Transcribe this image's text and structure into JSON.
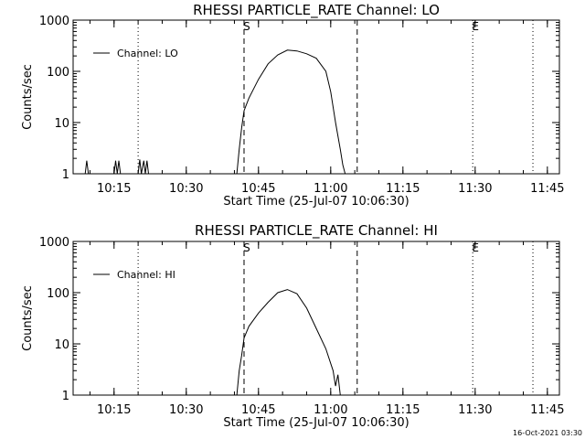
{
  "chart_data": [
    {
      "type": "line",
      "title": "RHESSI PARTICLE_RATE Channel: LO",
      "xlabel": "Start Time (25-Jul-07 10:06:30)",
      "ylabel": "Counts/sec",
      "yscale": "log",
      "ylim": [
        1,
        1000
      ],
      "xlim": [
        "10:06:30",
        "11:47:30"
      ],
      "x_ticks": [
        "10:15",
        "10:30",
        "10:45",
        "11:00",
        "11:15",
        "11:30",
        "11:45"
      ],
      "y_ticks": [
        "1",
        "10",
        "100",
        "1000"
      ],
      "legend": {
        "placement": "top-left",
        "entries": [
          "Channel: LO"
        ]
      },
      "markers": [
        {
          "label": "S",
          "time": "10:42:00",
          "style": "dashed"
        },
        {
          "label": "",
          "time": "11:05:30",
          "style": "dashed"
        },
        {
          "label": "",
          "time": "10:20:00",
          "style": "dotted"
        },
        {
          "label": "E",
          "time": "11:29:30",
          "style": "dotted"
        },
        {
          "label": "",
          "time": "11:42:00",
          "style": "dotted"
        }
      ],
      "series": [
        {
          "name": "Channel: LO",
          "points": [
            [
              "10:09:00",
              1
            ],
            [
              "10:09:20",
              1.8
            ],
            [
              "10:09:40",
              1
            ],
            [
              "10:15:00",
              1
            ],
            [
              "10:15:20",
              1.8
            ],
            [
              "10:15:40",
              1
            ],
            [
              "10:16:00",
              1.8
            ],
            [
              "10:16:20",
              1
            ],
            [
              "10:20:00",
              1
            ],
            [
              "10:20:20",
              1.9
            ],
            [
              "10:20:40",
              1
            ],
            [
              "10:21:10",
              1.8
            ],
            [
              "10:21:30",
              1
            ],
            [
              "10:21:50",
              1.8
            ],
            [
              "10:22:10",
              1
            ],
            [
              "10:40:30",
              1
            ],
            [
              "10:41:00",
              3
            ],
            [
              "10:41:30",
              8
            ],
            [
              "10:42:00",
              17
            ],
            [
              "10:43:00",
              30
            ],
            [
              "10:45:00",
              70
            ],
            [
              "10:47:00",
              140
            ],
            [
              "10:49:00",
              210
            ],
            [
              "10:51:00",
              260
            ],
            [
              "10:53:00",
              250
            ],
            [
              "10:55:00",
              220
            ],
            [
              "10:57:00",
              180
            ],
            [
              "10:59:00",
              100
            ],
            [
              "11:00:00",
              40
            ],
            [
              "11:01:00",
              10
            ],
            [
              "11:02:00",
              3
            ],
            [
              "11:02:30",
              1.5
            ],
            [
              "11:03:00",
              1
            ]
          ]
        }
      ]
    },
    {
      "type": "line",
      "title": "RHESSI PARTICLE_RATE Channel: HI",
      "xlabel": "Start Time (25-Jul-07 10:06:30)",
      "ylabel": "Counts/sec",
      "yscale": "log",
      "ylim": [
        1,
        1000
      ],
      "xlim": [
        "10:06:30",
        "11:47:30"
      ],
      "x_ticks": [
        "10:15",
        "10:30",
        "10:45",
        "11:00",
        "11:15",
        "11:30",
        "11:45"
      ],
      "y_ticks": [
        "1",
        "10",
        "100",
        "1000"
      ],
      "legend": {
        "placement": "top-left",
        "entries": [
          "Channel: HI"
        ]
      },
      "markers": [
        {
          "label": "S",
          "time": "10:42:00",
          "style": "dashed"
        },
        {
          "label": "",
          "time": "11:05:30",
          "style": "dashed"
        },
        {
          "label": "",
          "time": "10:20:00",
          "style": "dotted"
        },
        {
          "label": "E",
          "time": "11:29:30",
          "style": "dotted"
        },
        {
          "label": "",
          "time": "11:42:00",
          "style": "dotted"
        }
      ],
      "series": [
        {
          "name": "Channel: HI",
          "points": [
            [
              "10:40:30",
              1
            ],
            [
              "10:41:00",
              3
            ],
            [
              "10:41:30",
              6
            ],
            [
              "10:42:00",
              13
            ],
            [
              "10:43:00",
              22
            ],
            [
              "10:45:00",
              40
            ],
            [
              "10:47:00",
              65
            ],
            [
              "10:49:00",
              100
            ],
            [
              "10:51:00",
              115
            ],
            [
              "10:53:00",
              95
            ],
            [
              "10:55:00",
              50
            ],
            [
              "10:57:00",
              20
            ],
            [
              "10:59:00",
              8
            ],
            [
              "11:00:30",
              3
            ],
            [
              "11:01:00",
              1.5
            ],
            [
              "11:01:30",
              2.5
            ],
            [
              "11:02:00",
              1
            ]
          ]
        }
      ]
    }
  ],
  "footer_stamp": "16-Oct-2021 03:30"
}
